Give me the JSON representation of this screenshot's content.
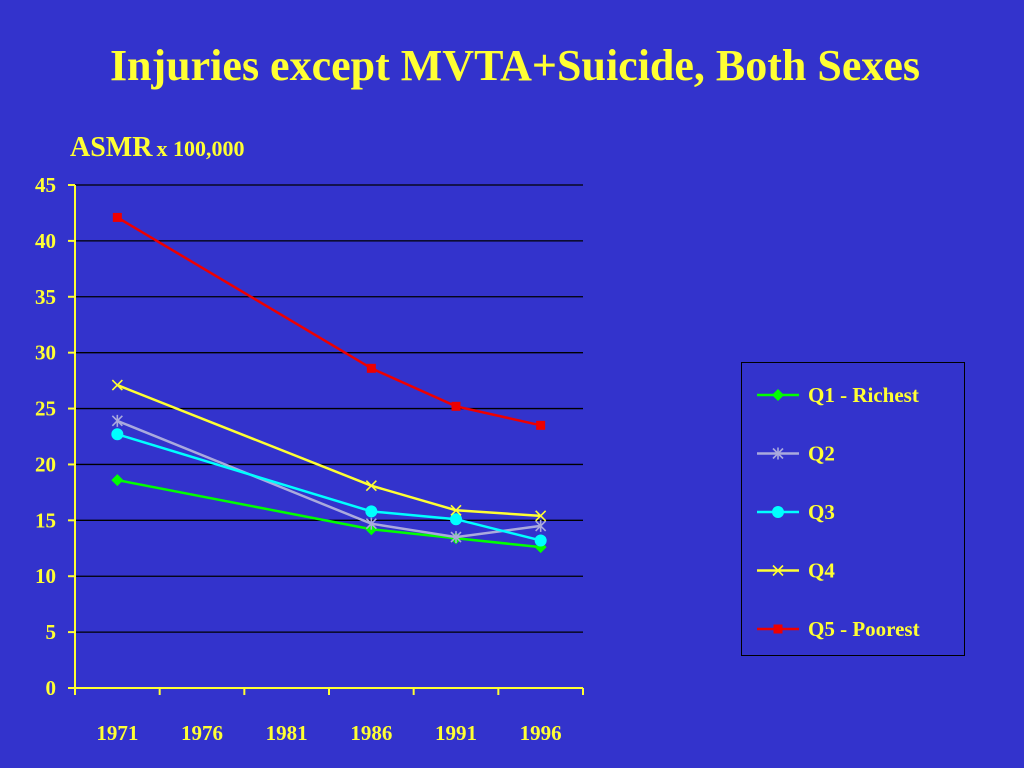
{
  "slide": {
    "title": "Injuries except MVTA+Suicide, Both Sexes",
    "ylabel_main": "ASMR",
    "ylabel_unit": "x 100,000"
  },
  "colors": {
    "background": "#3333cc",
    "text": "#ffff33",
    "axis": "#ffff33",
    "grid": "#000000"
  },
  "chart_data": {
    "type": "line",
    "title": "Injuries except MVTA+Suicide, Both Sexes",
    "xlabel": "",
    "ylabel": "ASMR x 100,000",
    "categories": [
      "1971",
      "1976",
      "1981",
      "1986",
      "1991",
      "1996"
    ],
    "ylim": [
      0,
      45
    ],
    "yticks": [
      0,
      5,
      10,
      15,
      20,
      25,
      30,
      35,
      40,
      45
    ],
    "grid": true,
    "legend_position": "right",
    "series": [
      {
        "name": "Q1 - Richest",
        "color": "#00ff00",
        "marker": "diamond",
        "x": [
          "1971",
          "1986",
          "1991",
          "1996"
        ],
        "values": [
          18.6,
          14.2,
          13.4,
          12.6
        ]
      },
      {
        "name": "Q2",
        "color": "#aaaadd",
        "marker": "asterisk",
        "x": [
          "1971",
          "1986",
          "1991",
          "1996"
        ],
        "values": [
          23.9,
          14.7,
          13.5,
          14.5
        ]
      },
      {
        "name": "Q3",
        "color": "#00ffff",
        "marker": "circle",
        "x": [
          "1971",
          "1986",
          "1991",
          "1996"
        ],
        "values": [
          22.7,
          15.8,
          15.1,
          13.2
        ]
      },
      {
        "name": "Q4",
        "color": "#ffff33",
        "marker": "x",
        "x": [
          "1971",
          "1986",
          "1991",
          "1996"
        ],
        "values": [
          27.1,
          18.1,
          15.9,
          15.4
        ]
      },
      {
        "name": "Q5 - Poorest",
        "color": "#ee0000",
        "marker": "square",
        "x": [
          "1971",
          "1986",
          "1991",
          "1996"
        ],
        "values": [
          42.1,
          28.6,
          25.2,
          23.5
        ]
      }
    ]
  }
}
